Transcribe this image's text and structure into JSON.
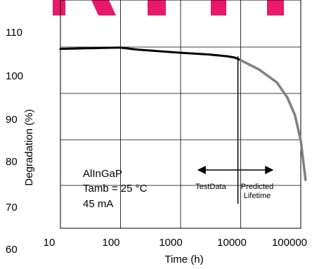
{
  "chart_data": {
    "type": "line",
    "title": "",
    "xlabel": "Time (h)",
    "ylabel": "Degradation (%)",
    "x_scale": "log",
    "xlim": [
      10,
      100000
    ],
    "ylim": [
      60,
      115
    ],
    "grid": true,
    "x_ticks": [
      {
        "value": 10,
        "label": "10"
      },
      {
        "value": 100,
        "label": "100"
      },
      {
        "value": 1000,
        "label": "1000"
      },
      {
        "value": 10000,
        "label": "10000"
      },
      {
        "value": 100000,
        "label": "100000"
      }
    ],
    "y_ticks": [
      {
        "value": 60,
        "label": "60"
      },
      {
        "value": 70,
        "label": "70"
      },
      {
        "value": 80,
        "label": "80"
      },
      {
        "value": 90,
        "label": "90"
      },
      {
        "value": 100,
        "label": "100"
      },
      {
        "value": 110,
        "label": "110"
      }
    ],
    "series": [
      {
        "color": "#000000",
        "style": "measured",
        "points": [
          [
            10,
            106.2
          ],
          [
            50,
            106.4
          ],
          [
            100,
            106.5
          ],
          [
            150,
            106.2
          ],
          [
            200,
            106
          ],
          [
            500,
            105.6
          ],
          [
            1000,
            105.3
          ],
          [
            3000,
            104.9
          ],
          [
            6000,
            104.5
          ],
          [
            8000,
            104.2
          ],
          [
            10000,
            103.6
          ]
        ]
      },
      {
        "color": "#808080",
        "style": "predicted",
        "points": [
          [
            10000,
            103.6
          ],
          [
            20000,
            101.5
          ],
          [
            40000,
            98.5
          ],
          [
            60000,
            95
          ],
          [
            80000,
            91
          ],
          [
            100000,
            85
          ],
          [
            120000,
            76
          ]
        ]
      }
    ],
    "test_end_x": 9000,
    "annotations": {
      "device_lines": [
        "AlInGaP",
        "Tamb = 25 °C",
        "45 mA"
      ],
      "testdata_label": "TestData",
      "predicted_label_lines": [
        "Predicted",
        "Lifetime"
      ]
    }
  },
  "colors": {
    "watermark": "#e8005a",
    "grid": "#000000",
    "measured": "#000000",
    "predicted": "#808080"
  }
}
